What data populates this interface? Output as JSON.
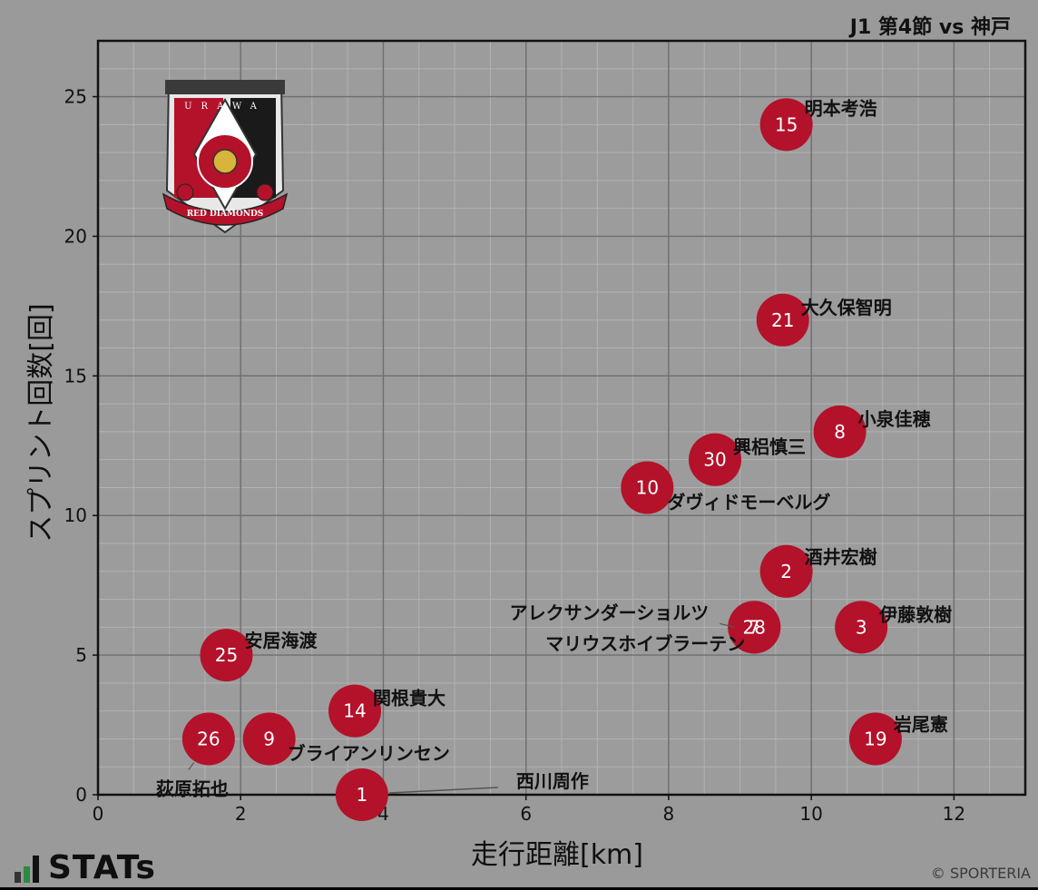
{
  "title": "J1 第4節 vs 神戸",
  "brand": "STATs",
  "credit": "© SPORTERIA",
  "logo": {
    "arc_text": "URAWA",
    "band_text": "RED DIAMONDS",
    "colors": {
      "red": "#b3122a",
      "black": "#1a1a1a",
      "gold": "#d9b43a"
    }
  },
  "chart_data": {
    "type": "scatter",
    "xlabel": "走行距離[km]",
    "ylabel": "スプリント回数[回]",
    "xlim": [
      0,
      13
    ],
    "ylim": [
      0,
      27
    ],
    "xticks": [
      0,
      2,
      4,
      6,
      8,
      10,
      12
    ],
    "yticks": [
      0,
      5,
      10,
      15,
      20,
      25
    ],
    "grid": true,
    "marker_color": "#b3122a",
    "points": [
      {
        "number": "15",
        "name": "明本考浩",
        "x": 9.65,
        "y": 24
      },
      {
        "number": "21",
        "name": "大久保智明",
        "x": 9.6,
        "y": 17
      },
      {
        "number": "8",
        "name": "小泉佳穂",
        "x": 10.4,
        "y": 13
      },
      {
        "number": "30",
        "name": "興梠慎三",
        "x": 8.65,
        "y": 12
      },
      {
        "number": "10",
        "name": "ダヴィドモーベルグ",
        "x": 7.7,
        "y": 11
      },
      {
        "number": "2",
        "name": "酒井宏樹",
        "x": 9.65,
        "y": 8
      },
      {
        "number": "3",
        "name": "伊藤敦樹",
        "x": 10.7,
        "y": 6
      },
      {
        "number": "28",
        "name": "アレクサンダーショルツ",
        "x": 9.2,
        "y": 6
      },
      {
        "number": "7",
        "name": "マリウスホイブラーテン",
        "x": 9.2,
        "y": 6
      },
      {
        "number": "25",
        "name": "安居海渡",
        "x": 1.8,
        "y": 5
      },
      {
        "number": "14",
        "name": "関根貴大",
        "x": 3.6,
        "y": 3
      },
      {
        "number": "26",
        "name": "荻原拓也",
        "x": 1.55,
        "y": 2
      },
      {
        "number": "9",
        "name": "ブライアンリンセン",
        "x": 2.4,
        "y": 2
      },
      {
        "number": "19",
        "name": "岩尾憲",
        "x": 10.9,
        "y": 2
      },
      {
        "number": "1",
        "name": "西川周作",
        "x": 3.7,
        "y": 0
      }
    ]
  }
}
